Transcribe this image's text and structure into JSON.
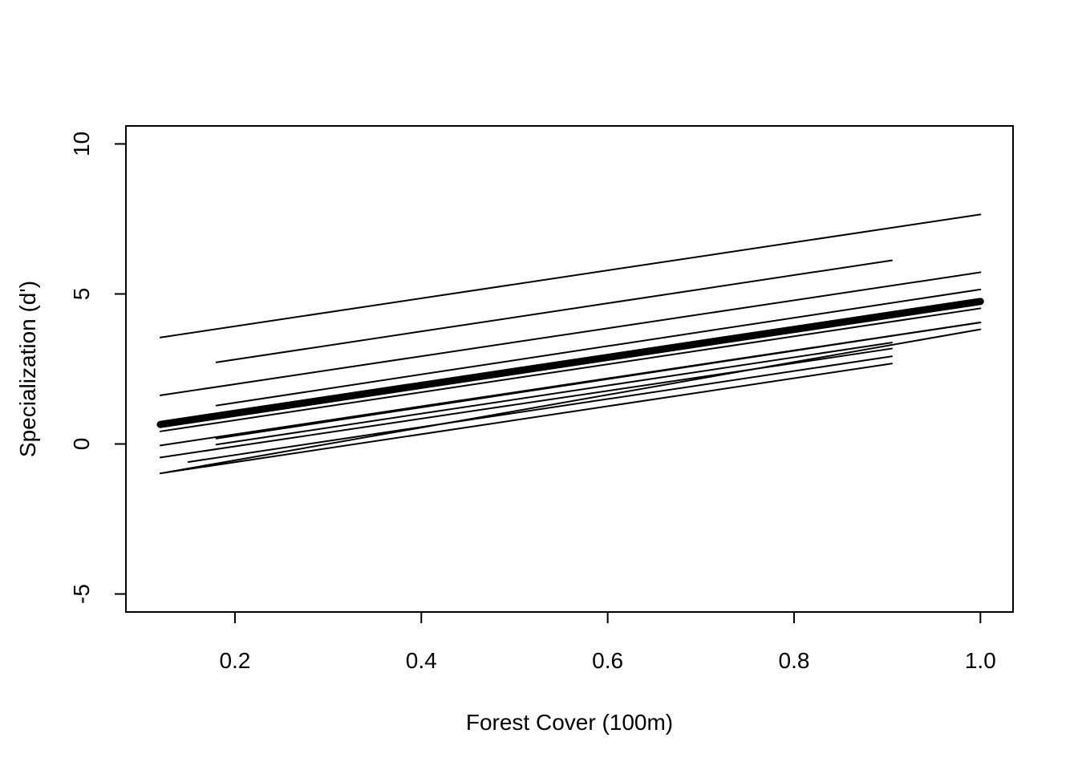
{
  "chart_data": {
    "type": "line",
    "title": "",
    "xlabel": "Forest Cover (100m)",
    "ylabel": "Specialization (d')",
    "xlim": [
      0.083,
      1.035
    ],
    "ylim": [
      -5.6,
      10.6
    ],
    "x_ticks": [
      0.2,
      0.4,
      0.6,
      0.8,
      1.0
    ],
    "x_tick_labels": [
      "0.2",
      "0.4",
      "0.6",
      "0.8",
      "1.0"
    ],
    "y_ticks": [
      -5,
      0,
      5,
      10
    ],
    "y_tick_labels": [
      "-5",
      "0",
      "5",
      "10"
    ],
    "grid": false,
    "legend": "none",
    "line_color": "#000000",
    "series": [
      {
        "x": [
          0.12,
          1.0
        ],
        "y": [
          3.55,
          7.65
        ],
        "weight": "thin"
      },
      {
        "x": [
          0.18,
          0.905
        ],
        "y": [
          2.72,
          6.12
        ],
        "weight": "thin"
      },
      {
        "x": [
          0.12,
          1.0
        ],
        "y": [
          1.62,
          5.72
        ],
        "weight": "thin"
      },
      {
        "x": [
          0.18,
          1.0
        ],
        "y": [
          1.28,
          5.15
        ],
        "weight": "thin"
      },
      {
        "x": [
          0.12,
          1.0
        ],
        "y": [
          0.65,
          4.75
        ],
        "weight": "thick"
      },
      {
        "x": [
          0.12,
          1.0
        ],
        "y": [
          0.42,
          4.52
        ],
        "weight": "thin"
      },
      {
        "x": [
          0.18,
          1.0
        ],
        "y": [
          0.18,
          4.05
        ],
        "weight": "thin"
      },
      {
        "x": [
          0.12,
          1.0
        ],
        "y": [
          -0.05,
          4.05
        ],
        "weight": "thin"
      },
      {
        "x": [
          0.18,
          0.905
        ],
        "y": [
          -0.02,
          3.38
        ],
        "weight": "thin"
      },
      {
        "x": [
          0.12,
          0.905
        ],
        "y": [
          -0.45,
          3.18
        ],
        "weight": "thin"
      },
      {
        "x": [
          0.15,
          0.905
        ],
        "y": [
          -0.6,
          2.92
        ],
        "weight": "thin"
      },
      {
        "x": [
          0.12,
          1.0
        ],
        "y": [
          -0.98,
          3.82
        ],
        "weight": "thin"
      },
      {
        "x": [
          0.12,
          0.905
        ],
        "y": [
          -0.98,
          2.68
        ],
        "weight": "thin"
      }
    ]
  }
}
